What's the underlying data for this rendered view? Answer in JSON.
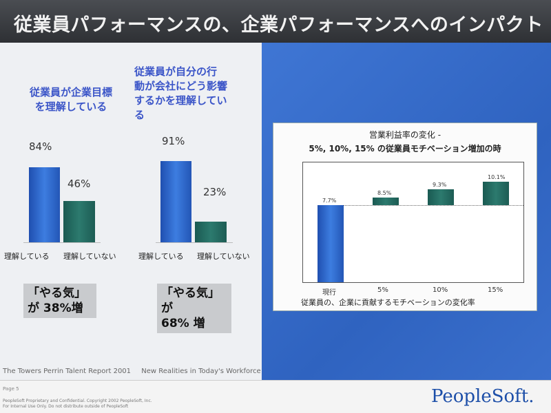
{
  "slide": {
    "title": "従業員パフォーマンスの、企業パフォーマンスへのインパクト"
  },
  "left": {
    "group1": {
      "heading_line1": "従業員が企業目標",
      "heading_line2": "を理解している",
      "bars": [
        {
          "label": "理解している",
          "value": "84%",
          "pct": 84,
          "color": "blue"
        },
        {
          "label": "理解していない",
          "value": "46%",
          "pct": 46,
          "color": "green"
        }
      ],
      "callout_line1": "「やる気」",
      "callout_line2": "が 38%増"
    },
    "group2": {
      "heading_line1": "従業員が自分の行",
      "heading_line2": "動が会社にどう影響",
      "heading_line3": "するかを理解してい",
      "heading_line4": "る",
      "bars": [
        {
          "label": "理解している",
          "value": "91%",
          "pct": 91,
          "color": "blue"
        },
        {
          "label": "理解していない",
          "value": "23%",
          "pct": 23,
          "color": "green"
        }
      ],
      "callout_line1": "「やる気」が",
      "callout_line2": "68% 増"
    },
    "source": {
      "report": "The Towers Perrin Talent Report 2001",
      "subtitle": "New Realities in Today's Workforce"
    }
  },
  "chart_data": {
    "type": "bar",
    "title": "営業利益率の変化 -",
    "subtitle": "5%, 10%, 15% の従業員モチベーション増加の時",
    "xlabel": "従業員の、企業に貢献するモチベーションの変化率",
    "categories": [
      "現行",
      "5%",
      "10%",
      "15%"
    ],
    "values": [
      7.7,
      8.5,
      9.3,
      10.1
    ],
    "data_labels": [
      "7.7%",
      "8.5%",
      "9.3%",
      "10.1%"
    ],
    "baseline_value": 7.7,
    "grid": false
  },
  "footer": {
    "page": "Page 5",
    "legal_line1": "PeopleSoft Proprietary and Confidential. Copyright 2002 PeopleSoft, Inc.",
    "legal_line2": "For Internal Use Only. Do not distribute outside of PeopleSoft",
    "logo": "PeopleSoft."
  },
  "colors": {
    "title_bg": "#3a3d42",
    "heading_text": "#3b55c8",
    "bar_blue": "#2f66c9",
    "bar_green": "#236b61",
    "panel_blue": "#3566c4",
    "logo": "#1c4ea8"
  }
}
